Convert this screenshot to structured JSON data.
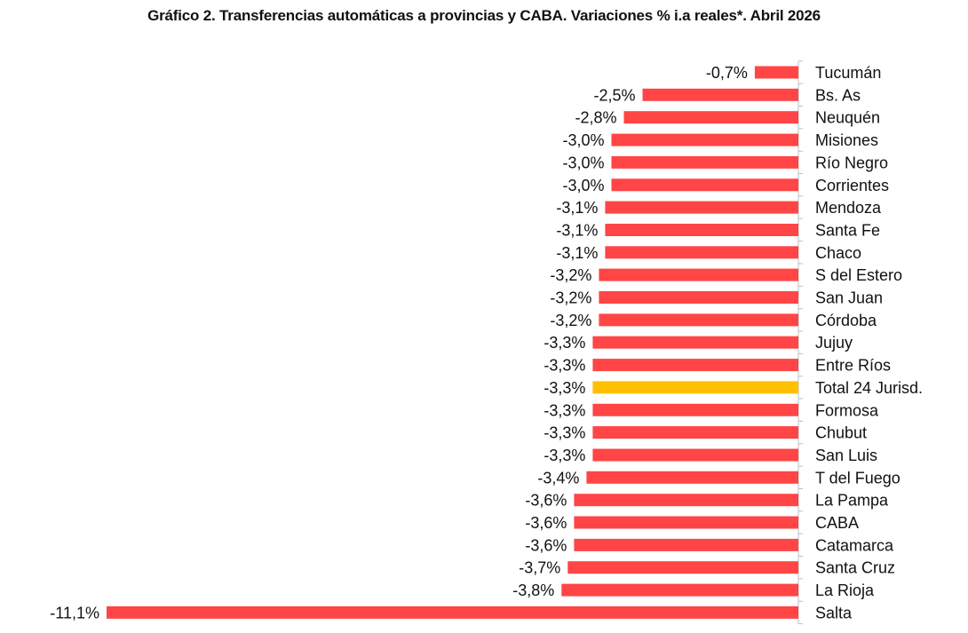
{
  "chart_data": {
    "type": "bar",
    "orientation": "horizontal",
    "title": "Gráfico 2. Transferencias automáticas a provincias y CABA. Variaciones % i.a reales*. Abril 2026",
    "categories": [
      "Tucumán",
      "Bs. As",
      "Neuquén",
      "Misiones",
      "Río Negro",
      "Corrientes",
      "Mendoza",
      "Santa Fe",
      "Chaco",
      "S del Estero",
      "San Juan",
      "Córdoba",
      "Jujuy",
      "Entre Ríos",
      "Total 24 Jurisd.",
      "Formosa",
      "Chubut",
      "San Luis",
      "T del Fuego",
      "La Pampa",
      "CABA",
      "Catamarca",
      "Santa Cruz",
      "La Rioja",
      "Salta"
    ],
    "values": [
      -0.7,
      -2.5,
      -2.8,
      -3.0,
      -3.0,
      -3.0,
      -3.1,
      -3.1,
      -3.1,
      -3.2,
      -3.2,
      -3.2,
      -3.3,
      -3.3,
      -3.3,
      -3.3,
      -3.3,
      -3.3,
      -3.4,
      -3.6,
      -3.6,
      -3.6,
      -3.7,
      -3.8,
      -11.1
    ],
    "value_labels": [
      "-0,7%",
      "-2,5%",
      "-2,8%",
      "-3,0%",
      "-3,0%",
      "-3,0%",
      "-3,1%",
      "-3,1%",
      "-3,1%",
      "-3,2%",
      "-3,2%",
      "-3,2%",
      "-3,3%",
      "-3,3%",
      "-3,3%",
      "-3,3%",
      "-3,3%",
      "-3,3%",
      "-3,4%",
      "-3,6%",
      "-3,6%",
      "-3,6%",
      "-3,7%",
      "-3,8%",
      "-11,1%"
    ],
    "highlight_category": "Total 24 Jurisd.",
    "colors": {
      "bar": "#ff4545",
      "highlight": "#ffc000",
      "axis": "#bfbfbf"
    },
    "xlim": [
      -11.1,
      0
    ],
    "xlabel": "",
    "ylabel": "",
    "grid": false,
    "legend": "none"
  }
}
